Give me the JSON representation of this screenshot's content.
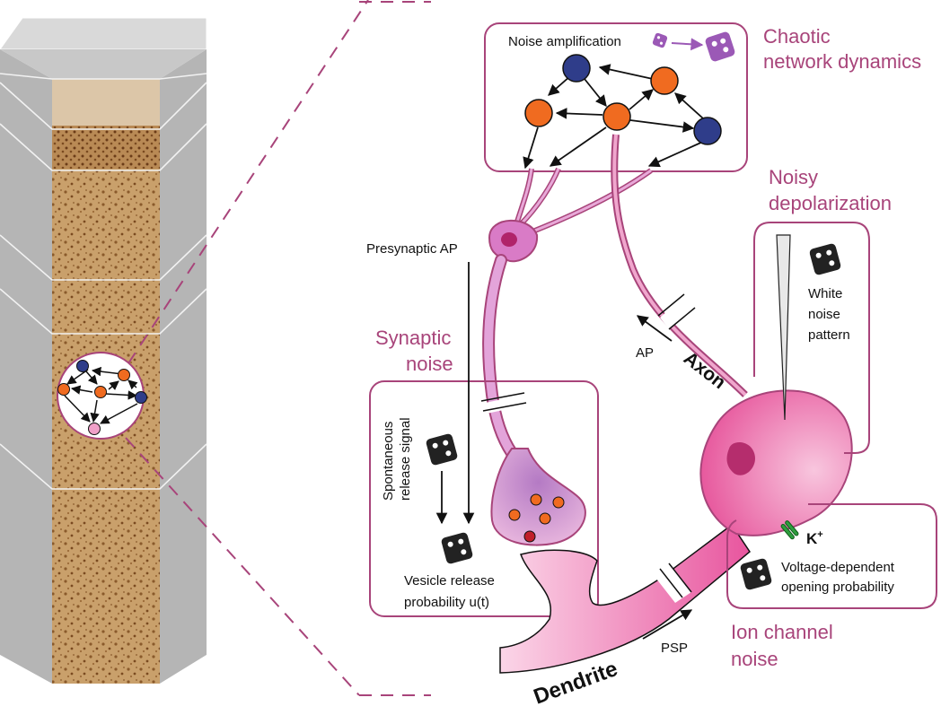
{
  "colors": {
    "accent": "#a8447a",
    "orange_neuron": "#f06b20",
    "blue_neuron": "#2f3d8a",
    "pink_cell": "#e8559e",
    "dice_purple": "#9b59b6",
    "tissue": "#c49a63"
  },
  "labels": {
    "chaotic_dynamics": [
      "Chaotic",
      "network dynamics"
    ],
    "noise_amplification": "Noise amplification",
    "noisy_depolarization": [
      "Noisy",
      "depolarization"
    ],
    "white_noise_pattern": [
      "White",
      "noise",
      "pattern"
    ],
    "presynaptic_ap": "Presynaptic AP",
    "synaptic_noise": [
      "Synaptic",
      "noise"
    ],
    "spontaneous_release": [
      "Spontaneous",
      "release signal"
    ],
    "vesicle_release": [
      "Vesicle release",
      "probability u(t)"
    ],
    "ap": "AP",
    "axon": "Axon",
    "potassium": "K",
    "potassium_sup": "+",
    "voltage_dependent": [
      "Voltage-dependent",
      "opening probability"
    ],
    "ion_channel_noise": [
      "Ion channel",
      "noise"
    ],
    "psp": "PSP",
    "dendrite": "Dendrite"
  },
  "icons": {
    "dice_small": "die-icon",
    "dice_large": "die-icon",
    "electrode": "pipette-icon",
    "potassium_channel": "ion-channel-icon"
  }
}
